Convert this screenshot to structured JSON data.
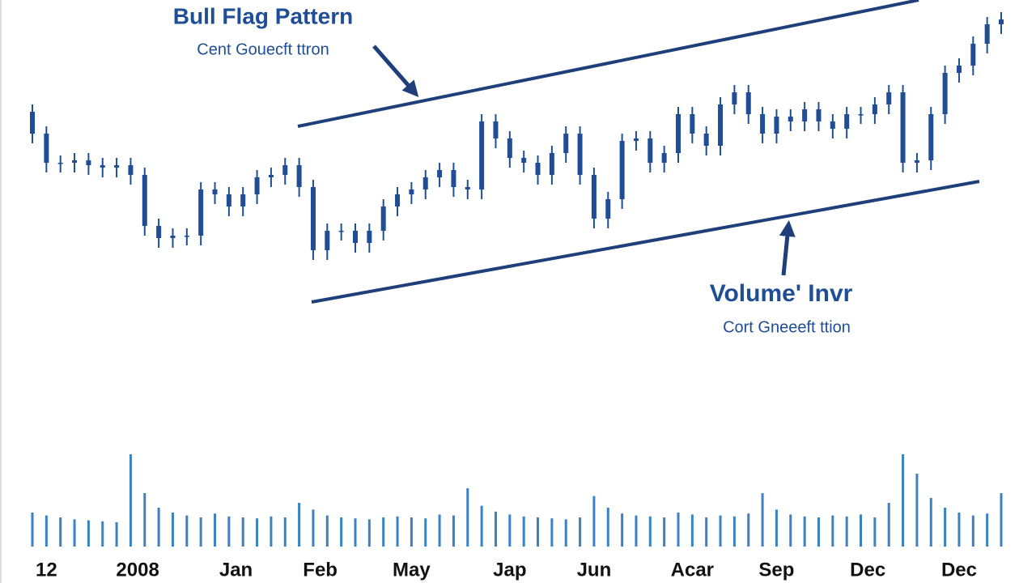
{
  "chart_data": {
    "type": "candlestick",
    "title": "Bull Flag Pattern",
    "subtitle": "Cent Gouecft ttron",
    "annotations": [
      "Volume' Invr",
      "Cort Gneeeft ttion"
    ],
    "color": "#1f4e96",
    "volume_color": "#3b82c4",
    "open": [
      77,
      72.5,
      66.5,
      66.5,
      67,
      66,
      65.5,
      66,
      64,
      53.5,
      51,
      51.5,
      51.5,
      61,
      60,
      57.5,
      60,
      63.5,
      64,
      66,
      61.5,
      48.5,
      52.5,
      52.5,
      50,
      52.5,
      57.5,
      60,
      61,
      63.5,
      65,
      61.5,
      61,
      75,
      71.5,
      67.5,
      66.5,
      64,
      68.5,
      72.5,
      64,
      55,
      59,
      71,
      71.5,
      66.5,
      68.5,
      76.5,
      72.5,
      70,
      78.5,
      81,
      76.5,
      72.5,
      76,
      75,
      77.5,
      75,
      73.5,
      76.5,
      76.5,
      78.5,
      81,
      66.5,
      67,
      76.5,
      85,
      86.5,
      91,
      95
    ],
    "high": [
      78.5,
      74,
      68,
      68.5,
      68.5,
      67.5,
      67.5,
      67.5,
      65.5,
      55,
      53,
      53,
      62.5,
      62.5,
      61.5,
      61.5,
      65,
      65.5,
      67.5,
      67.5,
      63,
      54,
      54,
      54,
      54,
      59,
      61.5,
      62.5,
      65,
      66.5,
      66.5,
      63,
      76.5,
      76.5,
      73,
      69,
      68,
      70,
      74,
      74,
      65.5,
      60.5,
      72.5,
      73,
      73,
      70,
      78,
      78,
      74,
      80,
      82.5,
      82.5,
      78,
      77.5,
      77.5,
      79,
      79,
      76.5,
      78,
      78,
      80,
      82.5,
      82.5,
      68.5,
      78,
      86.5,
      88,
      92.5,
      96.5,
      97.5
    ],
    "low": [
      70.5,
      64.5,
      64.5,
      64.5,
      64,
      63.5,
      63.5,
      62,
      51.5,
      49,
      49,
      49.5,
      49.5,
      58,
      55.5,
      55.5,
      58,
      61.5,
      62,
      59.5,
      46.5,
      46.5,
      50.5,
      48,
      48,
      50.5,
      55.5,
      58,
      59,
      61.5,
      59.5,
      59,
      59,
      69.5,
      65.5,
      64.5,
      62,
      62,
      66.5,
      62,
      53,
      53,
      57,
      69,
      64.5,
      64.5,
      66.5,
      70.5,
      68,
      68,
      76.5,
      74.5,
      70.5,
      70.5,
      73,
      73,
      73,
      71.5,
      71.5,
      74.5,
      74.5,
      76.5,
      64.5,
      64.5,
      65,
      74.5,
      83,
      84.5,
      89,
      93
    ],
    "close": [
      72.5,
      66.5,
      66.5,
      67,
      66,
      65.5,
      66,
      64,
      53.5,
      51,
      51.5,
      51.5,
      61,
      60,
      57.5,
      60,
      63.5,
      64,
      66,
      61.5,
      48.5,
      52.5,
      52.5,
      50,
      52.5,
      57.5,
      60,
      61,
      63.5,
      65,
      61.5,
      61,
      75,
      71.5,
      67.5,
      66.5,
      64,
      68.5,
      72.5,
      64,
      55,
      59,
      71,
      71.5,
      66.5,
      68.5,
      76.5,
      72.5,
      70,
      78.5,
      81,
      76.5,
      72.5,
      76,
      75,
      77.5,
      75,
      73.5,
      76.5,
      76.5,
      78.5,
      81,
      66.5,
      67,
      76.5,
      85,
      86.5,
      91,
      95,
      96
    ],
    "volume": [
      35,
      32,
      30,
      28,
      27,
      26,
      25,
      95,
      55,
      40,
      35,
      32,
      30,
      34,
      31,
      30,
      29,
      31,
      30,
      45,
      38,
      32,
      30,
      29,
      28,
      30,
      31,
      30,
      29,
      33,
      32,
      60,
      42,
      36,
      33,
      31,
      30,
      29,
      28,
      30,
      52,
      40,
      34,
      32,
      31,
      30,
      35,
      33,
      30,
      32,
      31,
      34,
      55,
      38,
      33,
      31,
      30,
      32,
      31,
      33,
      30,
      45,
      95,
      75,
      50,
      40,
      35,
      32,
      34,
      55
    ],
    "xlim": [
      0,
      69
    ],
    "xticks": [
      {
        "value": 1,
        "label": "12"
      },
      {
        "value": 7.5,
        "label": "2008"
      },
      {
        "value": 14.5,
        "label": "Jan"
      },
      {
        "value": 20.5,
        "label": "Feb"
      },
      {
        "value": 27,
        "label": "May"
      },
      {
        "value": 34,
        "label": "Jap"
      },
      {
        "value": 40,
        "label": "Jun"
      },
      {
        "value": 47,
        "label": "Acar"
      },
      {
        "value": 53,
        "label": "Sep"
      },
      {
        "value": 59.5,
        "label": "Dec"
      },
      {
        "value": 66,
        "label": "Dec"
      }
    ],
    "ylim": [
      40,
      100
    ],
    "y2lim": [
      0,
      100
    ]
  }
}
